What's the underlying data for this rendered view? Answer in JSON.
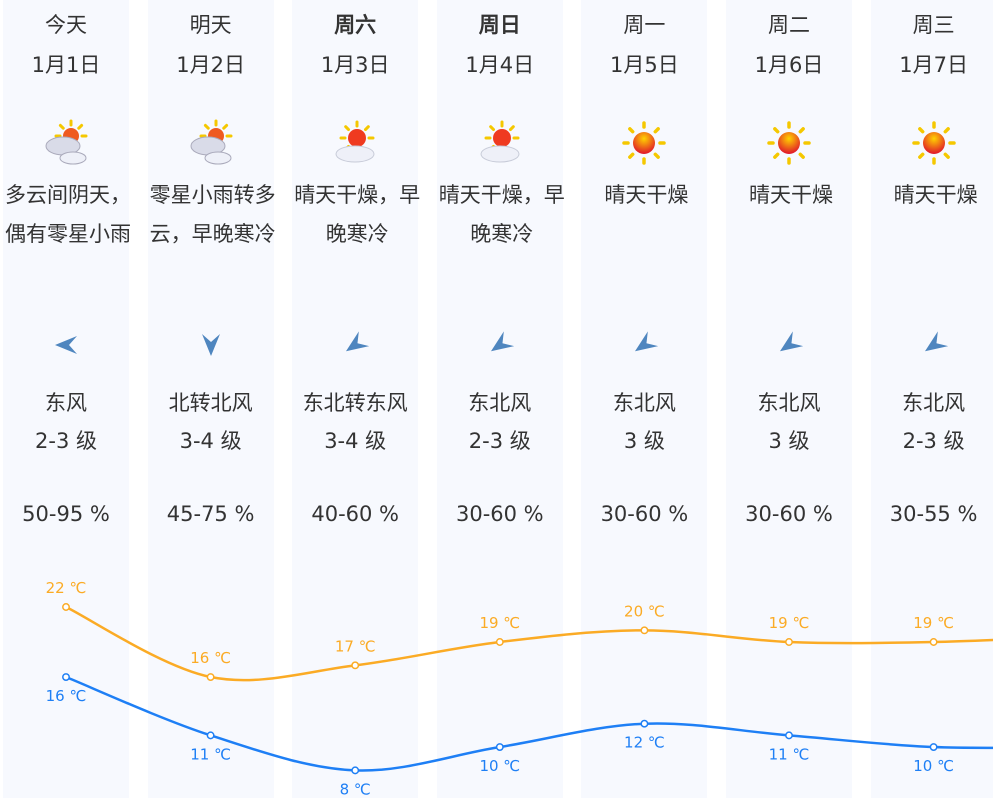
{
  "days": [
    {
      "day": "今天",
      "date": "1月1日",
      "bold": false,
      "icon": "partly-cloudy-icon",
      "desc": "多云间阴天，偶有零星小雨",
      "wind_icon": "wind-east-arrow-icon",
      "wind_dir": "东风",
      "wind_level": "2-3 级",
      "humidity": "50-95 %",
      "high": "22 ℃",
      "low": "16 ℃"
    },
    {
      "day": "明天",
      "date": "1月2日",
      "bold": false,
      "icon": "partly-cloudy-icon",
      "desc": "零星小雨转多云，早晚寒冷",
      "wind_icon": "wind-north-arrow-icon",
      "wind_dir": "北转北风",
      "wind_level": "3-4 级",
      "humidity": "45-75 %",
      "high": "16 ℃",
      "low": "11 ℃"
    },
    {
      "day": "周六",
      "date": "1月3日",
      "bold": true,
      "icon": "sunny-cloud-icon",
      "desc": "晴天干燥，早晚寒冷",
      "wind_icon": "wind-northeast-arrow-icon",
      "wind_dir": "东北转东风",
      "wind_level": "3-4 级",
      "humidity": "40-60 %",
      "high": "17 ℃",
      "low": "8 ℃"
    },
    {
      "day": "周日",
      "date": "1月4日",
      "bold": true,
      "icon": "sunny-cloud-icon",
      "desc": "晴天干燥，早晚寒冷",
      "wind_icon": "wind-northeast-arrow-icon",
      "wind_dir": "东北风",
      "wind_level": "2-3 级",
      "humidity": "30-60 %",
      "high": "19 ℃",
      "low": "10 ℃"
    },
    {
      "day": "周一",
      "date": "1月5日",
      "bold": false,
      "icon": "sunny-icon",
      "desc": "晴天干燥",
      "wind_icon": "wind-northeast-arrow-icon",
      "wind_dir": "东北风",
      "wind_level": "3 级",
      "humidity": "30-60 %",
      "high": "20 ℃",
      "low": "12 ℃"
    },
    {
      "day": "周二",
      "date": "1月6日",
      "bold": false,
      "icon": "sunny-icon",
      "desc": "晴天干燥",
      "wind_icon": "wind-northeast-arrow-icon",
      "wind_dir": "东北风",
      "wind_level": "3 级",
      "humidity": "30-60 %",
      "high": "19 ℃",
      "low": "11 ℃"
    },
    {
      "day": "周三",
      "date": "1月7日",
      "bold": false,
      "icon": "sunny-icon",
      "desc": "晴天干燥",
      "wind_icon": "wind-northeast-arrow-icon",
      "wind_dir": "东北风",
      "wind_level": "2-3 级",
      "humidity": "30-55 %",
      "high": "19 ℃",
      "low": "10 ℃"
    }
  ],
  "chart_data": {
    "type": "line",
    "categories": [
      "1月1日",
      "1月2日",
      "1月3日",
      "1月4日",
      "1月5日",
      "1月6日",
      "1月7日"
    ],
    "series": [
      {
        "values": [
          22,
          16,
          17,
          19,
          20,
          19,
          19
        ],
        "color": "#fbab25"
      },
      {
        "values": [
          16,
          11,
          8,
          10,
          12,
          11,
          10
        ],
        "color": "#1e7ff5"
      }
    ],
    "unit": "℃"
  },
  "colors": {
    "column_bg": "#f7f9fe",
    "high": "#fbab25",
    "low": "#1e7ff5",
    "arrow": "#4f86bf"
  }
}
